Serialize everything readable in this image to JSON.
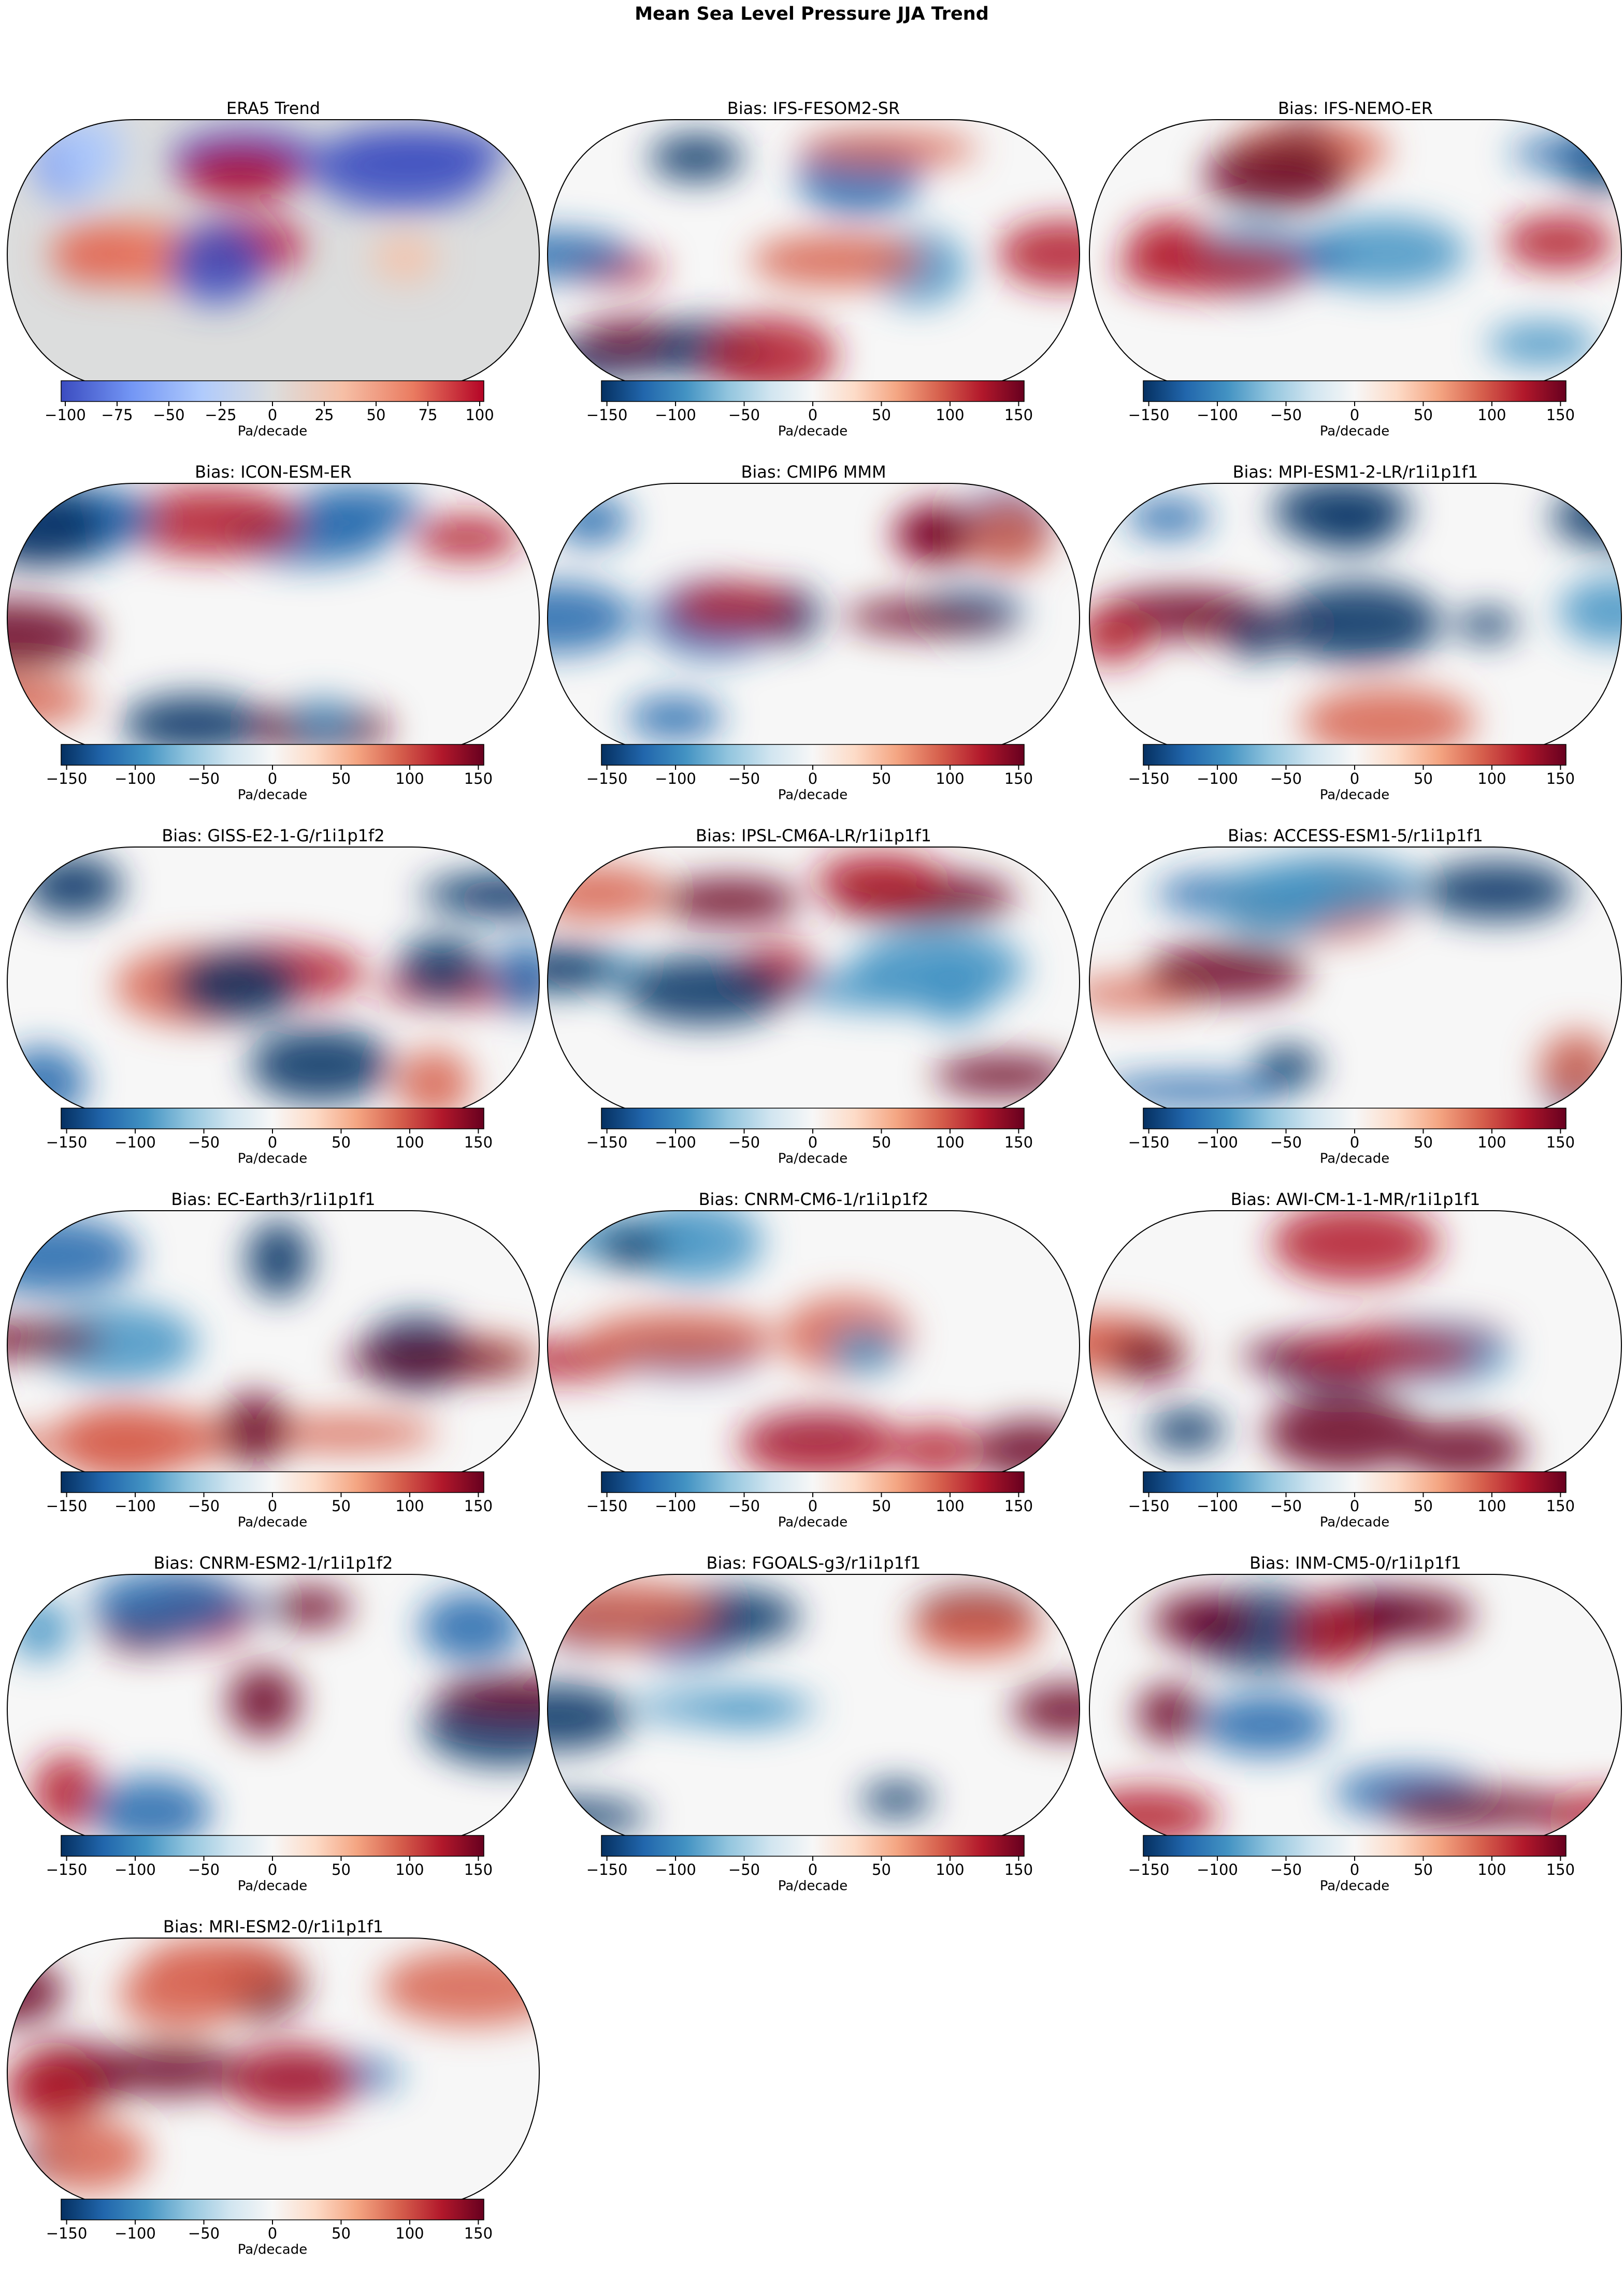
{
  "title": "Mean Sea Level Pressure JJA Trend",
  "panels": [
    {
      "title": "ERA5 Trend",
      "colorbar": {
        "label": "Pa/decade",
        "lim": [
          -102,
          102
        ],
        "colormap": [
          "#3b4cc0",
          "#7396f5",
          "#b0cbfc",
          "#dcdddd",
          "#f6bfa6",
          "#ea7b60",
          "#b40426"
        ],
        "ticks": [
          {
            "value": -100,
            "label": "−100"
          },
          {
            "value": -75,
            "label": "−75"
          },
          {
            "value": -50,
            "label": "−50"
          },
          {
            "value": -25,
            "label": "−25"
          },
          0,
          25,
          50,
          75,
          100
        ]
      }
    },
    {
      "title": "Bias: IFS-FESOM2-SR",
      "colorbar": {
        "label": "Pa/decade",
        "lim": [
          -154,
          154
        ],
        "colormap": [
          "#053061",
          "#2166ac",
          "#4393c3",
          "#92c5de",
          "#d1e5f0",
          "#f7f7f7",
          "#fddbc7",
          "#f4a582",
          "#d6604d",
          "#b2182b",
          "#67001f"
        ],
        "ticks": [
          {
            "value": -150,
            "label": "−150"
          },
          {
            "value": -100,
            "label": "−100"
          },
          {
            "value": -50,
            "label": "−50"
          },
          0,
          50,
          100,
          150
        ]
      }
    },
    {
      "title": "Bias: IFS-NEMO-ER",
      "colorbar": {
        "label": "Pa/decade",
        "lim": [
          -154,
          154
        ],
        "colormap": [
          "#053061",
          "#2166ac",
          "#4393c3",
          "#92c5de",
          "#d1e5f0",
          "#f7f7f7",
          "#fddbc7",
          "#f4a582",
          "#d6604d",
          "#b2182b",
          "#67001f"
        ],
        "ticks": [
          {
            "value": -150,
            "label": "−150"
          },
          {
            "value": -100,
            "label": "−100"
          },
          {
            "value": -50,
            "label": "−50"
          },
          0,
          50,
          100,
          150
        ]
      }
    },
    {
      "title": "Bias: ICON-ESM-ER",
      "colorbar": {
        "label": "Pa/decade",
        "lim": [
          -154,
          154
        ],
        "colormap": [
          "#053061",
          "#2166ac",
          "#4393c3",
          "#92c5de",
          "#d1e5f0",
          "#f7f7f7",
          "#fddbc7",
          "#f4a582",
          "#d6604d",
          "#b2182b",
          "#67001f"
        ],
        "ticks": [
          {
            "value": -150,
            "label": "−150"
          },
          {
            "value": -100,
            "label": "−100"
          },
          {
            "value": -50,
            "label": "−50"
          },
          0,
          50,
          100,
          150
        ]
      }
    },
    {
      "title": "Bias: CMIP6 MMM",
      "colorbar": {
        "label": "Pa/decade",
        "lim": [
          -154,
          154
        ],
        "colormap": [
          "#053061",
          "#2166ac",
          "#4393c3",
          "#92c5de",
          "#d1e5f0",
          "#f7f7f7",
          "#fddbc7",
          "#f4a582",
          "#d6604d",
          "#b2182b",
          "#67001f"
        ],
        "ticks": [
          {
            "value": -150,
            "label": "−150"
          },
          {
            "value": -100,
            "label": "−100"
          },
          {
            "value": -50,
            "label": "−50"
          },
          0,
          50,
          100,
          150
        ]
      }
    },
    {
      "title": "Bias: MPI-ESM1-2-LR/r1i1p1f1",
      "colorbar": {
        "label": "Pa/decade",
        "lim": [
          -154,
          154
        ],
        "colormap": [
          "#053061",
          "#2166ac",
          "#4393c3",
          "#92c5de",
          "#d1e5f0",
          "#f7f7f7",
          "#fddbc7",
          "#f4a582",
          "#d6604d",
          "#b2182b",
          "#67001f"
        ],
        "ticks": [
          {
            "value": -150,
            "label": "−150"
          },
          {
            "value": -100,
            "label": "−100"
          },
          {
            "value": -50,
            "label": "−50"
          },
          0,
          50,
          100,
          150
        ]
      }
    },
    {
      "title": "Bias: GISS-E2-1-G/r1i1p1f2",
      "colorbar": {
        "label": "Pa/decade",
        "lim": [
          -154,
          154
        ],
        "colormap": [
          "#053061",
          "#2166ac",
          "#4393c3",
          "#92c5de",
          "#d1e5f0",
          "#f7f7f7",
          "#fddbc7",
          "#f4a582",
          "#d6604d",
          "#b2182b",
          "#67001f"
        ],
        "ticks": [
          {
            "value": -150,
            "label": "−150"
          },
          {
            "value": -100,
            "label": "−100"
          },
          {
            "value": -50,
            "label": "−50"
          },
          0,
          50,
          100,
          150
        ]
      }
    },
    {
      "title": "Bias: IPSL-CM6A-LR/r1i1p1f1",
      "colorbar": {
        "label": "Pa/decade",
        "lim": [
          -154,
          154
        ],
        "colormap": [
          "#053061",
          "#2166ac",
          "#4393c3",
          "#92c5de",
          "#d1e5f0",
          "#f7f7f7",
          "#fddbc7",
          "#f4a582",
          "#d6604d",
          "#b2182b",
          "#67001f"
        ],
        "ticks": [
          {
            "value": -150,
            "label": "−150"
          },
          {
            "value": -100,
            "label": "−100"
          },
          {
            "value": -50,
            "label": "−50"
          },
          0,
          50,
          100,
          150
        ]
      }
    },
    {
      "title": "Bias: ACCESS-ESM1-5/r1i1p1f1",
      "colorbar": {
        "label": "Pa/decade",
        "lim": [
          -154,
          154
        ],
        "colormap": [
          "#053061",
          "#2166ac",
          "#4393c3",
          "#92c5de",
          "#d1e5f0",
          "#f7f7f7",
          "#fddbc7",
          "#f4a582",
          "#d6604d",
          "#b2182b",
          "#67001f"
        ],
        "ticks": [
          {
            "value": -150,
            "label": "−150"
          },
          {
            "value": -100,
            "label": "−100"
          },
          {
            "value": -50,
            "label": "−50"
          },
          0,
          50,
          100,
          150
        ]
      }
    },
    {
      "title": "Bias: EC-Earth3/r1i1p1f1",
      "colorbar": {
        "label": "Pa/decade",
        "lim": [
          -154,
          154
        ],
        "colormap": [
          "#053061",
          "#2166ac",
          "#4393c3",
          "#92c5de",
          "#d1e5f0",
          "#f7f7f7",
          "#fddbc7",
          "#f4a582",
          "#d6604d",
          "#b2182b",
          "#67001f"
        ],
        "ticks": [
          {
            "value": -150,
            "label": "−150"
          },
          {
            "value": -100,
            "label": "−100"
          },
          {
            "value": -50,
            "label": "−50"
          },
          0,
          50,
          100,
          150
        ]
      }
    },
    {
      "title": "Bias: CNRM-CM6-1/r1i1p1f2",
      "colorbar": {
        "label": "Pa/decade",
        "lim": [
          -154,
          154
        ],
        "colormap": [
          "#053061",
          "#2166ac",
          "#4393c3",
          "#92c5de",
          "#d1e5f0",
          "#f7f7f7",
          "#fddbc7",
          "#f4a582",
          "#d6604d",
          "#b2182b",
          "#67001f"
        ],
        "ticks": [
          {
            "value": -150,
            "label": "−150"
          },
          {
            "value": -100,
            "label": "−100"
          },
          {
            "value": -50,
            "label": "−50"
          },
          0,
          50,
          100,
          150
        ]
      }
    },
    {
      "title": "Bias: AWI-CM-1-1-MR/r1i1p1f1",
      "colorbar": {
        "label": "Pa/decade",
        "lim": [
          -154,
          154
        ],
        "colormap": [
          "#053061",
          "#2166ac",
          "#4393c3",
          "#92c5de",
          "#d1e5f0",
          "#f7f7f7",
          "#fddbc7",
          "#f4a582",
          "#d6604d",
          "#b2182b",
          "#67001f"
        ],
        "ticks": [
          {
            "value": -150,
            "label": "−150"
          },
          {
            "value": -100,
            "label": "−100"
          },
          {
            "value": -50,
            "label": "−50"
          },
          0,
          50,
          100,
          150
        ]
      }
    },
    {
      "title": "Bias: CNRM-ESM2-1/r1i1p1f2",
      "colorbar": {
        "label": "Pa/decade",
        "lim": [
          -154,
          154
        ],
        "colormap": [
          "#053061",
          "#2166ac",
          "#4393c3",
          "#92c5de",
          "#d1e5f0",
          "#f7f7f7",
          "#fddbc7",
          "#f4a582",
          "#d6604d",
          "#b2182b",
          "#67001f"
        ],
        "ticks": [
          {
            "value": -150,
            "label": "−150"
          },
          {
            "value": -100,
            "label": "−100"
          },
          {
            "value": -50,
            "label": "−50"
          },
          0,
          50,
          100,
          150
        ]
      }
    },
    {
      "title": "Bias: FGOALS-g3/r1i1p1f1",
      "colorbar": {
        "label": "Pa/decade",
        "lim": [
          -154,
          154
        ],
        "colormap": [
          "#053061",
          "#2166ac",
          "#4393c3",
          "#92c5de",
          "#d1e5f0",
          "#f7f7f7",
          "#fddbc7",
          "#f4a582",
          "#d6604d",
          "#b2182b",
          "#67001f"
        ],
        "ticks": [
          {
            "value": -150,
            "label": "−150"
          },
          {
            "value": -100,
            "label": "−100"
          },
          {
            "value": -50,
            "label": "−50"
          },
          0,
          50,
          100,
          150
        ]
      }
    },
    {
      "title": "Bias: INM-CM5-0/r1i1p1f1",
      "colorbar": {
        "label": "Pa/decade",
        "lim": [
          -154,
          154
        ],
        "colormap": [
          "#053061",
          "#2166ac",
          "#4393c3",
          "#92c5de",
          "#d1e5f0",
          "#f7f7f7",
          "#fddbc7",
          "#f4a582",
          "#d6604d",
          "#b2182b",
          "#67001f"
        ],
        "ticks": [
          {
            "value": -150,
            "label": "−150"
          },
          {
            "value": -100,
            "label": "−100"
          },
          {
            "value": -50,
            "label": "−50"
          },
          0,
          50,
          100,
          150
        ]
      }
    },
    {
      "title": "Bias: MRI-ESM2-0/r1i1p1f1",
      "colorbar": {
        "label": "Pa/decade",
        "lim": [
          -154,
          154
        ],
        "colormap": [
          "#053061",
          "#2166ac",
          "#4393c3",
          "#92c5de",
          "#d1e5f0",
          "#f7f7f7",
          "#fddbc7",
          "#f4a582",
          "#d6604d",
          "#b2182b",
          "#67001f"
        ],
        "ticks": [
          {
            "value": -150,
            "label": "−150"
          },
          {
            "value": -100,
            "label": "−100"
          },
          {
            "value": -50,
            "label": "−50"
          },
          0,
          50,
          100,
          150
        ]
      }
    }
  ]
}
